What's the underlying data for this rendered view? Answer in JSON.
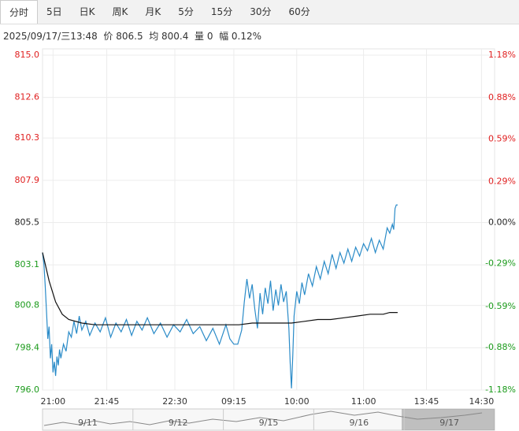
{
  "tabs": [
    "分时",
    "5日",
    "日K",
    "周K",
    "月K",
    "5分",
    "15分",
    "30分",
    "60分"
  ],
  "active_tab": 0,
  "header": "2025/09/17/三13:48  价 806.5  均 800.4  量 0  幅 0.12%",
  "chart_data": {
    "type": "line",
    "grid": true,
    "xlim": [
      0,
      345
    ],
    "xticks": [
      {
        "value": 8,
        "label": "21:00"
      },
      {
        "value": 49,
        "label": "21:45"
      },
      {
        "value": 101,
        "label": "22:30"
      },
      {
        "value": 146,
        "label": "09:15"
      },
      {
        "value": 194,
        "label": "10:00"
      },
      {
        "value": 245,
        "label": "11:00"
      },
      {
        "value": 293,
        "label": "13:45"
      },
      {
        "value": 335,
        "label": "14:30"
      }
    ],
    "ylim": [
      796.0,
      815.0
    ],
    "yticks": [
      {
        "value": 815.0,
        "label": "815.0"
      },
      {
        "value": 812.6,
        "label": "812.6"
      },
      {
        "value": 810.3,
        "label": "810.3"
      },
      {
        "value": 807.9,
        "label": "807.9"
      },
      {
        "value": 805.5,
        "label": "805.5"
      },
      {
        "value": 803.1,
        "label": "803.1"
      },
      {
        "value": 800.8,
        "label": "800.8"
      },
      {
        "value": 798.4,
        "label": "798.4"
      },
      {
        "value": 796.0,
        "label": "796.0"
      }
    ],
    "y2lim": [
      -1.18,
      1.18
    ],
    "y2ticks": [
      {
        "value": 1.18,
        "label": "1.18%"
      },
      {
        "value": 0.88,
        "label": "0.88%"
      },
      {
        "value": 0.59,
        "label": "0.59%"
      },
      {
        "value": 0.29,
        "label": "0.29%"
      },
      {
        "value": 0,
        "label": "0.00%"
      },
      {
        "value": -0.29,
        "label": "-0.29%"
      },
      {
        "value": -0.59,
        "label": "-0.59%"
      },
      {
        "value": -0.88,
        "label": "-0.88%"
      },
      {
        "value": -1.18,
        "label": "-1.18%"
      }
    ],
    "up_color": "#e02020",
    "down_color": "#1a9a1a",
    "flat_color": "#222222",
    "series": [
      {
        "color": "#2a8bc8",
        "x": [
          0,
          1,
          2,
          3,
          4,
          5,
          6,
          7,
          8,
          9,
          10,
          11,
          12,
          13,
          14,
          16,
          18,
          20,
          22,
          24,
          26,
          28,
          30,
          33,
          36,
          40,
          44,
          48,
          52,
          56,
          60,
          64,
          68,
          72,
          76,
          80,
          85,
          90,
          95,
          100,
          105,
          110,
          115,
          120,
          125,
          130,
          135,
          140,
          143,
          146,
          149,
          152,
          154,
          156,
          158,
          160,
          162,
          164,
          166,
          168,
          170,
          172,
          174,
          176,
          178,
          180,
          182,
          184,
          186,
          188,
          189,
          190,
          191,
          192,
          194,
          196,
          198,
          200,
          203,
          206,
          209,
          212,
          215,
          218,
          221,
          224,
          227,
          230,
          233,
          236,
          239,
          242,
          245,
          248,
          251,
          254,
          257,
          260,
          263,
          265,
          267,
          268,
          269,
          270,
          271
        ],
        "values": [
          803.8,
          803.2,
          802.0,
          800.5,
          798.9,
          799.6,
          797.8,
          798.6,
          797.0,
          797.6,
          796.8,
          797.9,
          797.4,
          798.3,
          797.8,
          798.6,
          798.2,
          799.3,
          799.0,
          799.9,
          799.2,
          800.2,
          799.4,
          799.9,
          799.1,
          799.8,
          799.3,
          800.1,
          799.0,
          799.8,
          799.3,
          800.0,
          799.1,
          799.9,
          799.4,
          800.1,
          799.2,
          799.8,
          799.0,
          799.7,
          799.3,
          800.0,
          799.2,
          799.6,
          798.8,
          799.5,
          798.6,
          799.7,
          798.9,
          798.6,
          798.6,
          799.4,
          801.0,
          802.3,
          801.2,
          802.0,
          800.6,
          799.5,
          801.5,
          800.3,
          801.8,
          800.9,
          802.2,
          800.5,
          801.7,
          800.8,
          802.0,
          801.0,
          801.6,
          799.5,
          797.5,
          796.1,
          798.0,
          800.2,
          801.6,
          800.9,
          802.1,
          801.4,
          802.6,
          801.9,
          803.0,
          802.3,
          803.3,
          802.6,
          803.7,
          802.9,
          803.8,
          803.2,
          804.0,
          803.3,
          804.1,
          803.6,
          804.3,
          803.9,
          804.6,
          803.8,
          804.5,
          804.0,
          805.2,
          804.9,
          805.4,
          805.1,
          806.3,
          806.5,
          806.5
        ]
      },
      {
        "color": "#111111",
        "x": [
          0,
          5,
          10,
          15,
          20,
          30,
          40,
          60,
          80,
          100,
          120,
          140,
          150,
          160,
          170,
          180,
          190,
          200,
          210,
          220,
          230,
          240,
          250,
          260,
          265,
          271
        ],
        "values": [
          803.8,
          802.2,
          801.0,
          800.3,
          800.0,
          799.8,
          799.7,
          799.7,
          799.7,
          799.7,
          799.7,
          799.7,
          799.7,
          799.8,
          799.8,
          799.8,
          799.8,
          799.9,
          800.0,
          800.0,
          800.1,
          800.2,
          800.3,
          800.3,
          800.4,
          800.4
        ]
      }
    ],
    "navigator_labels": [
      "9/11",
      "9/12",
      "9/15",
      "9/16",
      "9/17"
    ]
  }
}
